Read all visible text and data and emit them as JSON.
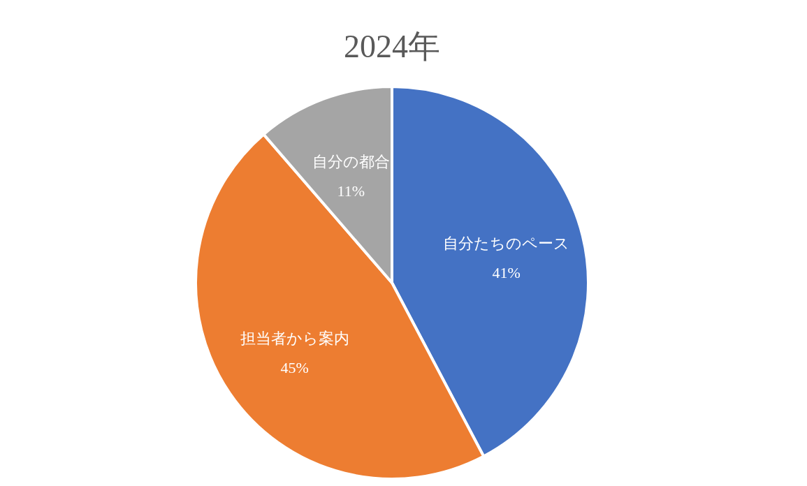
{
  "chart_data": {
    "type": "pie",
    "title": "2024年",
    "categories": [
      "自分たちのペース",
      "担当者から案内",
      "自分の都合"
    ],
    "values": [
      41,
      45,
      11
    ],
    "colors": [
      "#4472c4",
      "#ed7d31",
      "#a5a5a5"
    ],
    "value_labels": [
      "41%",
      "45%",
      "11%"
    ],
    "legend": false
  }
}
